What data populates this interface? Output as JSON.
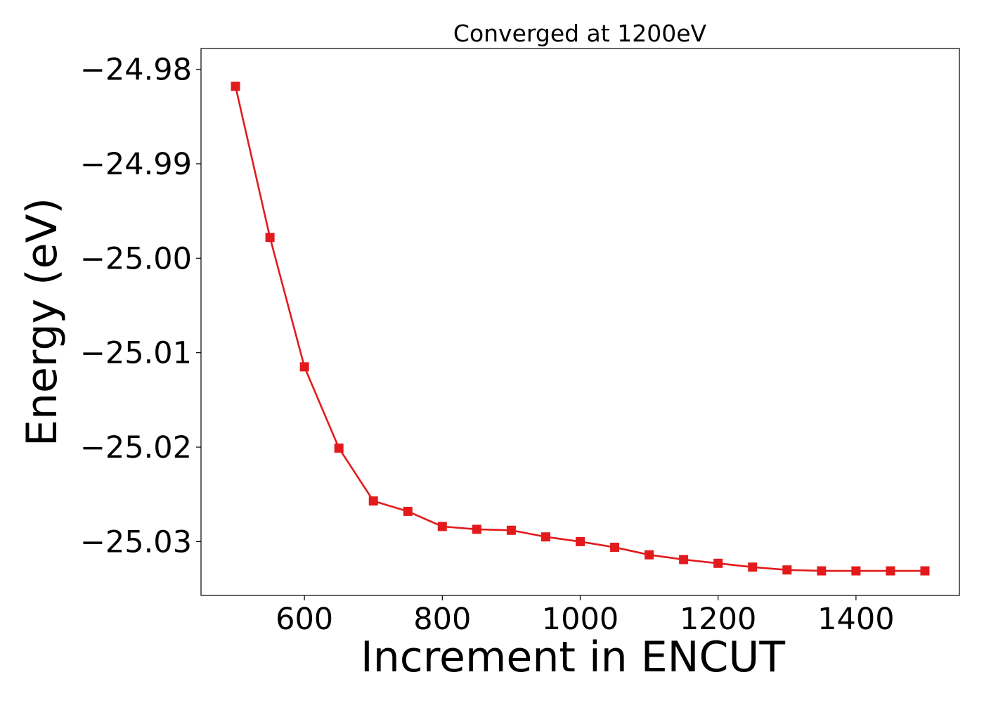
{
  "chart_data": {
    "type": "line",
    "title": "Converged at 1200eV",
    "xlabel": "Increment in ENCUT",
    "ylabel": "Energy (eV)",
    "xlim": [
      450,
      1550
    ],
    "ylim": [
      -25.0357,
      -24.9778
    ],
    "x_ticks": [
      600,
      800,
      1000,
      1200,
      1400
    ],
    "x_tick_labels": [
      "600",
      "800",
      "1000",
      "1200",
      "1400"
    ],
    "y_ticks": [
      -24.98,
      -24.99,
      -25.0,
      -25.01,
      -25.02,
      -25.03
    ],
    "y_tick_labels": [
      "−24.98",
      "−24.99",
      "−25.00",
      "−25.01",
      "−25.02",
      "−25.03"
    ],
    "grid": false,
    "series": [
      {
        "color": "#e31a1c",
        "marker": "square",
        "x": [
          500,
          550,
          600,
          650,
          700,
          750,
          800,
          850,
          900,
          950,
          1000,
          1050,
          1100,
          1150,
          1200,
          1250,
          1300,
          1350,
          1400,
          1450,
          1500
        ],
        "y": [
          -24.9818,
          -24.9978,
          -25.0115,
          -25.0201,
          -25.0257,
          -25.0268,
          -25.0284,
          -25.0287,
          -25.0288,
          -25.0295,
          -25.03,
          -25.0306,
          -25.0314,
          -25.0319,
          -25.0323,
          -25.0327,
          -25.033,
          -25.0331,
          -25.0331,
          -25.0331,
          -25.0331
        ]
      }
    ]
  }
}
